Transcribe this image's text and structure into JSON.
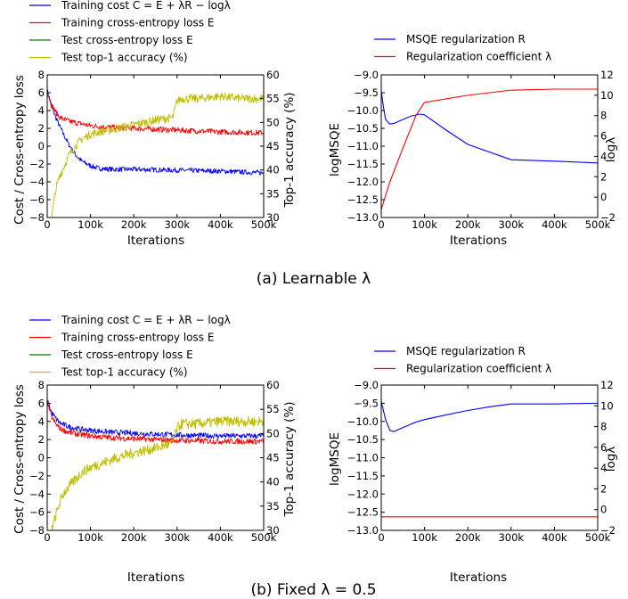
{
  "panels": [
    {
      "caption": "(a) Learnable λ",
      "left": {
        "legend": [
          {
            "label": "Training cost C = E + λR − logλ",
            "color": "#0000ff"
          },
          {
            "label": "Training cross-entropy loss E",
            "color": "#ff0000"
          },
          {
            "label": "Test cross-entropy loss E",
            "color": "#008000"
          },
          {
            "label": "Test top-1 accuracy (%)",
            "color": "#bfbf00"
          }
        ],
        "xlabel": "Iterations",
        "ylabel": "Cost / Cross-entropy loss",
        "ylabel_right": "Top-1 accuracy (%)"
      },
      "right": {
        "legend": [
          {
            "label": "MSQE regularization R",
            "color": "#0000ff"
          },
          {
            "label": "Regularization coefficient λ",
            "color": "#ff0000"
          }
        ],
        "xlabel": "Iterations",
        "ylabel": "logMSQE",
        "ylabel_right": "logλ"
      }
    },
    {
      "caption": "(b) Fixed λ = 0.5",
      "left": {
        "legend": [
          {
            "label": "Training cost C = E + λR − logλ",
            "color": "#0000ff"
          },
          {
            "label": "Training cross-entropy loss E",
            "color": "#ff0000"
          },
          {
            "label": "Test cross-entropy loss E",
            "color": "#008000"
          },
          {
            "label": "Test top-1 accuracy (%)",
            "color": "#bfbf00"
          }
        ],
        "xlabel": "Iterations",
        "ylabel": "Cost / Cross-entropy loss",
        "ylabel_right": "Top-1 accuracy (%)"
      },
      "right": {
        "legend": [
          {
            "label": "MSQE regularization R",
            "color": "#0000ff"
          },
          {
            "label": "Regularization coefficient λ",
            "color": "#ff0000"
          }
        ],
        "xlabel": "Iterations",
        "ylabel": "logMSQE",
        "ylabel_right": "logλ"
      }
    }
  ],
  "chart_data": [
    {
      "id": "a-left",
      "type": "line",
      "xlim": [
        0,
        500000
      ],
      "xticks": [
        "0",
        "100k",
        "200k",
        "300k",
        "400k",
        "500k"
      ],
      "ylim": [
        -8,
        8
      ],
      "yticks": [
        -8,
        -6,
        -4,
        -2,
        0,
        2,
        4,
        6,
        8
      ],
      "ylim_right": [
        30,
        60
      ],
      "yticks_right": [
        30,
        35,
        40,
        45,
        50,
        55,
        60
      ],
      "series": [
        {
          "name": "Training cost C = E + λR − logλ",
          "color": "#0000ff",
          "axis": "left",
          "x": [
            0,
            10000,
            20000,
            30000,
            40000,
            50000,
            60000,
            70000,
            80000,
            100000,
            120000,
            150000,
            200000,
            300000,
            400000,
            500000
          ],
          "y": [
            6.3,
            4.5,
            3.2,
            2.1,
            1.1,
            0.2,
            -0.6,
            -1.2,
            -1.7,
            -2.2,
            -2.5,
            -2.6,
            -2.6,
            -2.7,
            -2.8,
            -3.0
          ]
        },
        {
          "name": "Training cross-entropy loss E",
          "color": "#ff0000",
          "axis": "left",
          "x": [
            0,
            10000,
            20000,
            30000,
            50000,
            70000,
            100000,
            150000,
            200000,
            300000,
            400000,
            500000
          ],
          "y": [
            6.2,
            4.6,
            3.8,
            3.2,
            2.8,
            2.6,
            2.3,
            2.1,
            2.0,
            1.8,
            1.6,
            1.5
          ]
        },
        {
          "name": "Test top-1 accuracy (%)",
          "color": "#bfbf00",
          "axis": "right",
          "x": [
            10000,
            15000,
            20000,
            30000,
            40000,
            50000,
            60000,
            70000,
            80000,
            100000,
            120000,
            150000,
            200000,
            250000,
            290000,
            300000,
            310000,
            350000,
            400000,
            450000,
            500000
          ],
          "y": [
            30,
            33,
            36,
            39,
            41,
            43,
            44.5,
            45.5,
            46.5,
            47.5,
            48,
            48.5,
            49.5,
            50.5,
            51,
            54.5,
            55,
            55,
            55.5,
            55,
            55
          ]
        }
      ]
    },
    {
      "id": "a-right",
      "type": "line",
      "xlim": [
        0,
        500000
      ],
      "xticks": [
        "0",
        "100k",
        "200k",
        "300k",
        "400k",
        "500k"
      ],
      "ylim": [
        -13.0,
        -9.0
      ],
      "yticks": [
        "−13.0",
        "−12.5",
        "−12.0",
        "−11.5",
        "−11.0",
        "−10.5",
        "−10.0",
        "−9.5",
        "−9.0"
      ],
      "ylim_right": [
        -2,
        12
      ],
      "yticks_right": [
        -2,
        0,
        2,
        4,
        6,
        8,
        10,
        12
      ],
      "series": [
        {
          "name": "MSQE regularization R",
          "color": "#0000ff",
          "axis": "left",
          "x": [
            0,
            5000,
            10000,
            20000,
            30000,
            50000,
            70000,
            90000,
            100000,
            150000,
            200000,
            300000,
            400000,
            500000
          ],
          "y": [
            -9.45,
            -9.9,
            -10.25,
            -10.38,
            -10.36,
            -10.25,
            -10.15,
            -10.1,
            -10.12,
            -10.55,
            -10.95,
            -11.38,
            -11.42,
            -11.47
          ]
        },
        {
          "name": "Regularization coefficient λ",
          "color": "#ff0000",
          "axis": "right",
          "x": [
            0,
            20000,
            50000,
            80000,
            100000,
            200000,
            300000,
            400000,
            500000
          ],
          "y": [
            -1.2,
            1.5,
            4.8,
            8.0,
            9.3,
            10.0,
            10.5,
            10.6,
            10.6
          ]
        }
      ]
    },
    {
      "id": "b-left",
      "type": "line",
      "xlim": [
        0,
        500000
      ],
      "xticks": [
        "0",
        "100k",
        "200k",
        "300k",
        "400k",
        "500k"
      ],
      "ylim": [
        -8,
        8
      ],
      "yticks": [
        -8,
        -6,
        -4,
        -2,
        0,
        2,
        4,
        6,
        8
      ],
      "ylim_right": [
        30,
        60
      ],
      "yticks_right": [
        30,
        35,
        40,
        45,
        50,
        55,
        60
      ],
      "series": [
        {
          "name": "Training cost C = E + λR − logλ",
          "color": "#0000ff",
          "axis": "left",
          "x": [
            0,
            10000,
            20000,
            30000,
            50000,
            70000,
            100000,
            150000,
            200000,
            300000,
            400000,
            500000
          ],
          "y": [
            6.3,
            5.0,
            4.3,
            3.8,
            3.4,
            3.2,
            3.0,
            2.8,
            2.7,
            2.5,
            2.4,
            2.4
          ]
        },
        {
          "name": "Training cross-entropy loss E",
          "color": "#ff0000",
          "axis": "left",
          "x": [
            0,
            10000,
            20000,
            30000,
            50000,
            70000,
            100000,
            150000,
            200000,
            300000,
            400000,
            500000
          ],
          "y": [
            6.2,
            4.5,
            3.7,
            3.2,
            2.8,
            2.6,
            2.4,
            2.2,
            2.1,
            1.9,
            1.8,
            1.8
          ]
        },
        {
          "name": "Test top-1 accuracy (%)",
          "color": "#bfbf00",
          "axis": "right",
          "x": [
            10000,
            20000,
            30000,
            40000,
            60000,
            80000,
            100000,
            130000,
            160000,
            200000,
            250000,
            290000,
            300000,
            310000,
            350000,
            400000,
            450000,
            500000
          ],
          "y": [
            30,
            33,
            36,
            38,
            40,
            42,
            43,
            44,
            45,
            46,
            47,
            48,
            51,
            52,
            52,
            52.5,
            52.5,
            52.5
          ]
        }
      ]
    },
    {
      "id": "b-right",
      "type": "line",
      "xlim": [
        0,
        500000
      ],
      "xticks": [
        "0",
        "100k",
        "200k",
        "300k",
        "400k",
        "500k"
      ],
      "ylim": [
        -13.0,
        -9.0
      ],
      "yticks": [
        "−13.0",
        "−12.5",
        "−12.0",
        "−11.5",
        "−11.0",
        "−10.5",
        "−10.0",
        "−9.5",
        "−9.0"
      ],
      "ylim_right": [
        -2,
        12
      ],
      "yticks_right": [
        -2,
        0,
        2,
        4,
        6,
        8,
        10,
        12
      ],
      "series": [
        {
          "name": "MSQE regularization R",
          "color": "#0000ff",
          "axis": "left",
          "x": [
            0,
            10000,
            20000,
            30000,
            40000,
            60000,
            80000,
            100000,
            150000,
            200000,
            250000,
            300000,
            400000,
            500000
          ],
          "y": [
            -9.45,
            -9.95,
            -10.25,
            -10.28,
            -10.22,
            -10.12,
            -10.02,
            -9.95,
            -9.82,
            -9.7,
            -9.6,
            -9.52,
            -9.52,
            -9.5
          ]
        },
        {
          "name": "Regularization coefficient λ",
          "color": "#ff0000",
          "axis": "right",
          "x": [
            0,
            500000
          ],
          "y": [
            -0.7,
            -0.7
          ]
        }
      ]
    }
  ]
}
